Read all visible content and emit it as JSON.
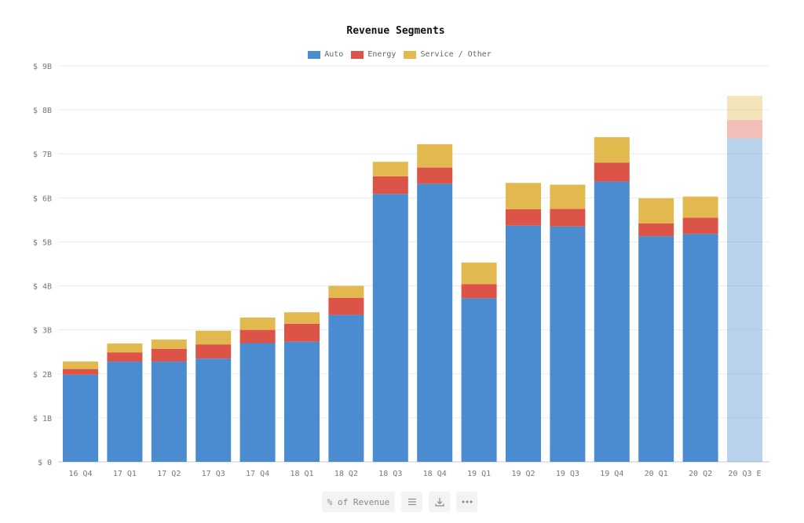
{
  "chart_data": {
    "type": "bar",
    "stacked": true,
    "title": "Revenue Segments",
    "categories": [
      "16 Q4",
      "17 Q1",
      "17 Q2",
      "17 Q3",
      "17 Q4",
      "18 Q1",
      "18 Q2",
      "18 Q3",
      "18 Q4",
      "19 Q1",
      "19 Q2",
      "19 Q3",
      "19 Q4",
      "20 Q1",
      "20 Q2",
      "20 Q3 E"
    ],
    "series": [
      {
        "name": "Auto",
        "color": "#4a8ccf",
        "values": [
          1.98,
          2.28,
          2.28,
          2.35,
          2.7,
          2.73,
          3.34,
          6.09,
          6.32,
          3.72,
          5.37,
          5.35,
          6.37,
          5.13,
          5.18,
          7.35
        ]
      },
      {
        "name": "Energy",
        "color": "#dc5348",
        "values": [
          0.13,
          0.21,
          0.29,
          0.32,
          0.3,
          0.41,
          0.39,
          0.4,
          0.37,
          0.32,
          0.37,
          0.4,
          0.43,
          0.29,
          0.37,
          0.42
        ]
      },
      {
        "name": "Service / Other",
        "color": "#e1b94e",
        "values": [
          0.17,
          0.2,
          0.21,
          0.31,
          0.28,
          0.26,
          0.27,
          0.33,
          0.53,
          0.49,
          0.6,
          0.55,
          0.58,
          0.57,
          0.48,
          0.55
        ]
      }
    ],
    "estimated_categories": [
      "20 Q3 E"
    ],
    "ylim": [
      0,
      9
    ],
    "y_ticks": [
      "$ 0",
      "$ 1B",
      "$ 2B",
      "$ 3B",
      "$ 4B",
      "$ 5B",
      "$ 6B",
      "$ 7B",
      "$ 8B",
      "$ 9B"
    ],
    "xlabel": "",
    "ylabel": "",
    "grid": true,
    "legend_position": "top-center"
  },
  "toolbar": {
    "percent_label": "% of Revenue",
    "list_icon": "list-icon",
    "download_icon": "download-icon",
    "more_icon": "more-icon"
  }
}
